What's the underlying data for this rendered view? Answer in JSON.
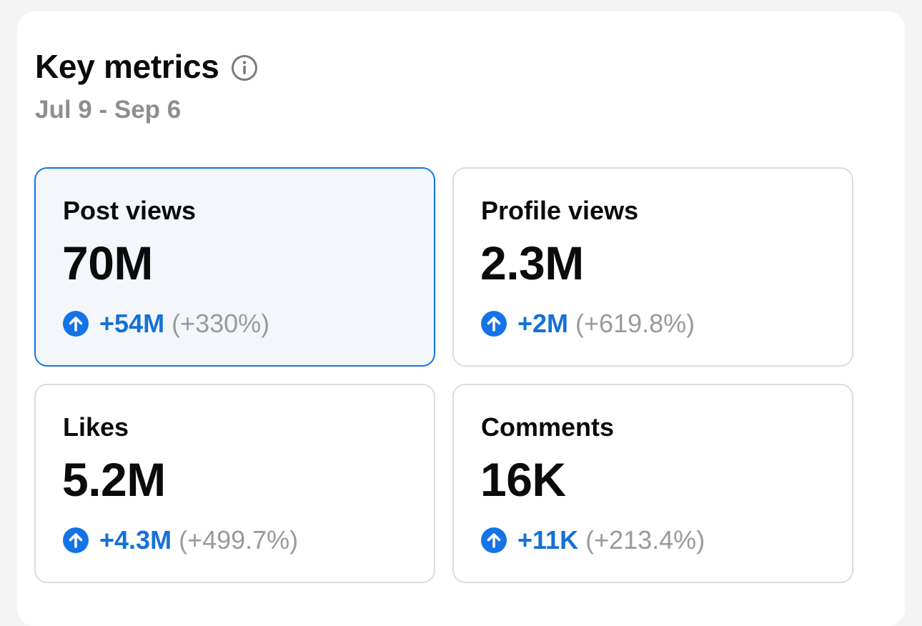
{
  "header": {
    "title": "Key metrics",
    "info_icon": "info-icon",
    "date_range": "Jul 9 - Sep 6"
  },
  "colors": {
    "accent": "#1473e6",
    "delta_text": "#1571d6",
    "muted_text": "#9a9a9a",
    "selected_bg": "#f3f7fc"
  },
  "metrics": [
    {
      "label": "Post views",
      "value": "70M",
      "delta": "+54M",
      "percent": "(+330%)",
      "trend_icon": "arrow-up-circle-icon",
      "selected": true
    },
    {
      "label": "Profile views",
      "value": "2.3M",
      "delta": "+2M",
      "percent": "(+619.8%)",
      "trend_icon": "arrow-up-circle-icon",
      "selected": false
    },
    {
      "label": "Likes",
      "value": "5.2M",
      "delta": "+4.3M",
      "percent": "(+499.7%)",
      "trend_icon": "arrow-up-circle-icon",
      "selected": false
    },
    {
      "label": "Comments",
      "value": "16K",
      "delta": "+11K",
      "percent": "(+213.4%)",
      "trend_icon": "arrow-up-circle-icon",
      "selected": false
    }
  ]
}
